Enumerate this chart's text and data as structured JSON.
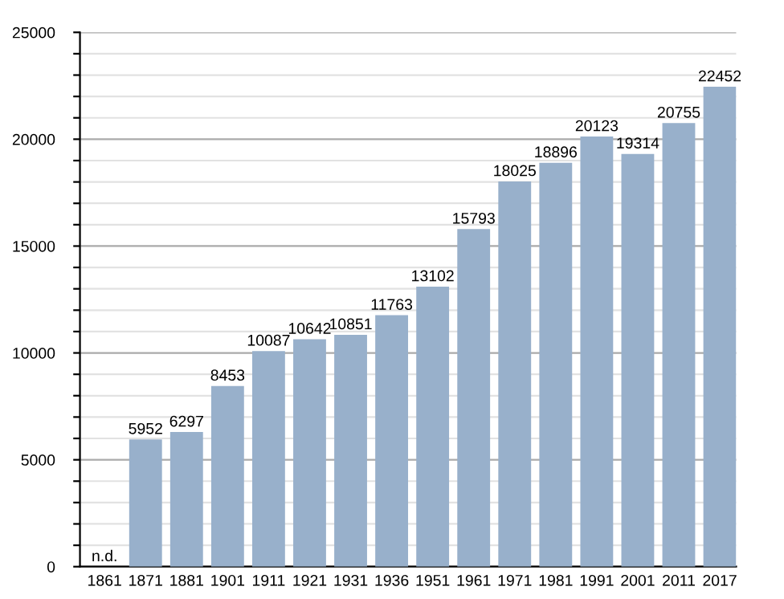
{
  "chart_data": {
    "type": "bar",
    "categories": [
      "1861",
      "1871",
      "1881",
      "1901",
      "1911",
      "1921",
      "1931",
      "1936",
      "1951",
      "1961",
      "1971",
      "1981",
      "1991",
      "2001",
      "2011",
      "2017"
    ],
    "values": [
      null,
      5952,
      6297,
      8453,
      10087,
      10642,
      10851,
      11763,
      13102,
      15793,
      18025,
      18896,
      20123,
      19314,
      20755,
      22452
    ],
    "value_labels": [
      "n.d.",
      "5952",
      "6297",
      "8453",
      "10087",
      "10642",
      "10851",
      "11763",
      "13102",
      "15793",
      "18025",
      "18896",
      "20123",
      "19314",
      "20755",
      "22452"
    ],
    "color": "#98b0cb",
    "ylim": [
      0,
      25000
    ],
    "yticks": [
      0,
      {
        "value": 1000,
        "label": null
      },
      {
        "value": 2000,
        "label": null
      },
      {
        "value": 3000,
        "label": null
      },
      {
        "value": 4000,
        "label": null
      },
      5000,
      {
        "value": 6000,
        "label": null
      },
      {
        "value": 7000,
        "label": null
      },
      {
        "value": 8000,
        "label": null
      },
      {
        "value": 9000,
        "label": null
      },
      10000,
      {
        "value": 11000,
        "label": null
      },
      {
        "value": 12000,
        "label": null
      },
      {
        "value": 13000,
        "label": null
      },
      {
        "value": 14000,
        "label": null
      },
      15000,
      {
        "value": 16000,
        "label": null
      },
      {
        "value": 17000,
        "label": null
      },
      {
        "value": 18000,
        "label": null
      },
      {
        "value": 19000,
        "label": null
      },
      20000,
      {
        "value": 21000,
        "label": null
      },
      {
        "value": 22000,
        "label": null
      },
      {
        "value": 23000,
        "label": null
      },
      {
        "value": 24000,
        "label": null
      },
      25000
    ],
    "grid": "y"
  }
}
